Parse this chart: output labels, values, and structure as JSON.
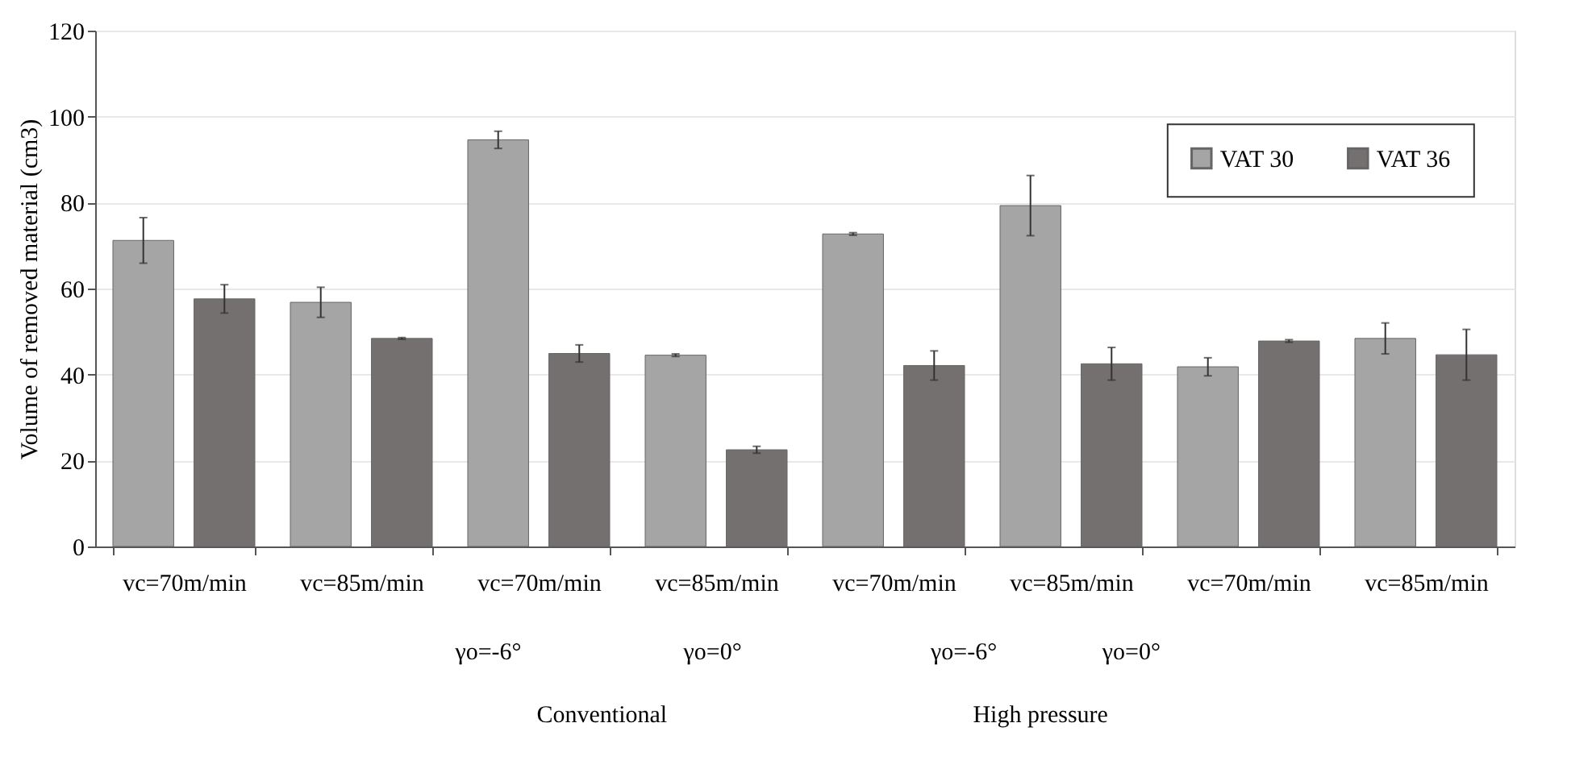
{
  "chart_data": {
    "type": "bar",
    "ylabel": "Volume of removed material (cm3)",
    "categories": [
      "vc=70m/min",
      "vc=85m/min",
      "vc=70m/min",
      "vc=85m/min",
      "vc=70m/min",
      "vc=85m/min",
      "vc=70m/min",
      "vc=85m/min"
    ],
    "series": [
      {
        "name": "VAT 30",
        "color": "#a5a5a5",
        "values": [
          71.2,
          56.8,
          94.6,
          44.5,
          72.7,
          79.3,
          41.8,
          48.4
        ],
        "errors": [
          5.3,
          3.5,
          2,
          0.3,
          0.3,
          7,
          2.1,
          3.6
        ]
      },
      {
        "name": "VAT 36",
        "color": "#757070",
        "values": [
          57.6,
          48.4,
          44.9,
          22.5,
          42.1,
          42.5,
          47.8,
          44.6
        ],
        "errors": [
          3.3,
          0.2,
          2,
          0.8,
          3.4,
          3.8,
          0.3,
          5.9
        ]
      }
    ],
    "ylim": [
      0,
      120
    ],
    "yticks": [
      0,
      20,
      40,
      60,
      80,
      100,
      120
    ],
    "grid": "y",
    "legend": "top right",
    "annotations": [
      "γo=-6°",
      "γo=0°",
      "γo=-6°",
      "γo=0°",
      "Conventional",
      "High pressure"
    ]
  }
}
